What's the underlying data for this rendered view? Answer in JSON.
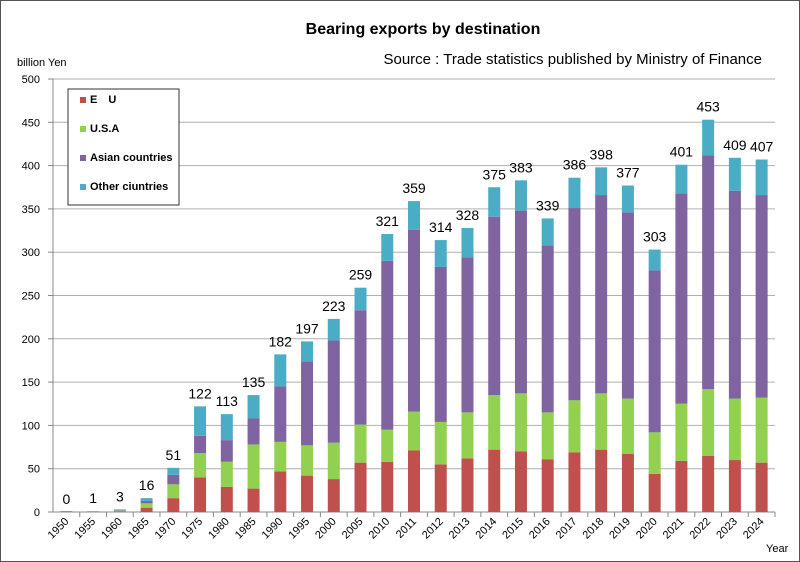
{
  "chart_data": {
    "type": "bar",
    "stacked": true,
    "title": "Bearing exports by destination",
    "subtitle": "Source : Trade statistics published by Ministry of Finance",
    "ylabel": "billion Yen",
    "xlabel": "Year",
    "ylim": [
      0,
      500
    ],
    "yticks": [
      0,
      50,
      100,
      150,
      200,
      250,
      300,
      350,
      400,
      450,
      500
    ],
    "grid": true,
    "legend_position": "top-left",
    "categories": [
      "1950",
      "1955",
      "1960",
      "1965",
      "1970",
      "1975",
      "1980",
      "1985",
      "1990",
      "1995",
      "2000",
      "2005",
      "2010",
      "2011",
      "2012",
      "2013",
      "2014",
      "2015",
      "2016",
      "2017",
      "2018",
      "2019",
      "2020",
      "2021",
      "2022",
      "2023",
      "2024"
    ],
    "totals": [
      0,
      1,
      3,
      16,
      51,
      122,
      113,
      135,
      182,
      197,
      223,
      259,
      321,
      359,
      314,
      328,
      375,
      383,
      339,
      386,
      398,
      377,
      303,
      401,
      453,
      409,
      407
    ],
    "series": [
      {
        "name": "E　U",
        "color": "#c0504d",
        "values": [
          0,
          0.3,
          0.8,
          5,
          16,
          40,
          29,
          27,
          47,
          42,
          38,
          57,
          58,
          71,
          55,
          62,
          72,
          70,
          61,
          69,
          72,
          67,
          44,
          59,
          65,
          60,
          57
        ]
      },
      {
        "name": "U.S.A",
        "color": "#92d050",
        "values": [
          0,
          0.3,
          0.8,
          5,
          16,
          28,
          29,
          51,
          34,
          35,
          42,
          44,
          37,
          45,
          49,
          53,
          63,
          67,
          54,
          60,
          65,
          64,
          48,
          66,
          77,
          71,
          75
        ]
      },
      {
        "name": "Asian countries",
        "color": "#8064a2",
        "values": [
          0,
          0.2,
          0.6,
          3,
          11,
          20,
          25,
          30,
          64,
          97,
          118,
          132,
          195,
          210,
          179,
          179,
          206,
          211,
          193,
          222,
          229,
          215,
          187,
          243,
          270,
          240,
          234
        ]
      },
      {
        "name": "Other ciuntries",
        "color": "#4bacc6",
        "values": [
          0,
          0.2,
          0.8,
          3,
          8,
          34,
          30,
          27,
          37,
          23,
          25,
          26,
          31,
          33,
          31,
          34,
          34,
          35,
          31,
          35,
          32,
          31,
          24,
          33,
          41,
          38,
          41
        ]
      }
    ]
  }
}
